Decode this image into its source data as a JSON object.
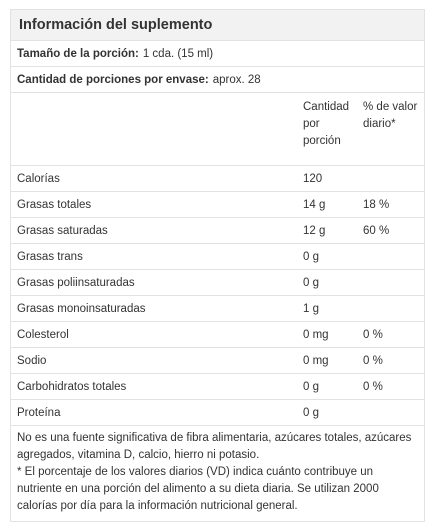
{
  "panel": {
    "title": "Información del suplemento"
  },
  "serving_size": {
    "label": "Tamaño de la porción:",
    "value": "1 cda. (15 ml)"
  },
  "servings_per_container": {
    "label": "Cantidad de porciones por envase:",
    "value": "aprox. 28"
  },
  "table": {
    "header_amount": "Cantidad por porción",
    "header_daily_value": "% de valor diario*",
    "rows": [
      {
        "nutrient": "Calorías",
        "amount": "120",
        "dv": ""
      },
      {
        "nutrient": "Grasas totales",
        "amount": "14 g",
        "dv": "18 %"
      },
      {
        "nutrient": "Grasas saturadas",
        "amount": "12 g",
        "dv": "60 %"
      },
      {
        "nutrient": "Grasas trans",
        "amount": "0 g",
        "dv": ""
      },
      {
        "nutrient": "Grasas poliinsaturadas",
        "amount": "0 g",
        "dv": ""
      },
      {
        "nutrient": "Grasas monoinsaturadas",
        "amount": "1 g",
        "dv": ""
      },
      {
        "nutrient": "Colesterol",
        "amount": "0 mg",
        "dv": "0 %"
      },
      {
        "nutrient": "Sodio",
        "amount": "0 mg",
        "dv": "0 %"
      },
      {
        "nutrient": "Carbohidratos totales",
        "amount": "0 g",
        "dv": "0 %"
      },
      {
        "nutrient": "Proteína",
        "amount": "0 g",
        "dv": ""
      }
    ]
  },
  "footnote": {
    "line1": "No es una fuente significativa de fibra alimentaria, azúcares totales, azúcares agregados, vitamina D, calcio, hierro ni potasio.",
    "line2": "* El porcentaje de los valores diarios (VD) indica cuánto contribuye un nutriente en una porción del alimento a su dieta diaria. Se utilizan 2000 calorías por día para la información nutricional general."
  }
}
